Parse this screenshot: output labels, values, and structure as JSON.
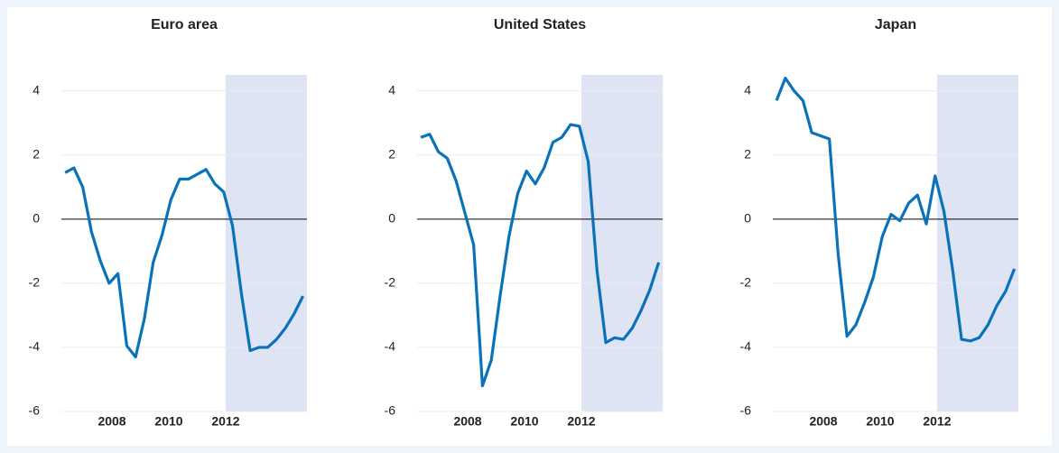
{
  "chart_data": [
    {
      "type": "line",
      "title": "Euro area",
      "x": [
        2006.35,
        2006.66,
        2006.97,
        2007.28,
        2007.59,
        2007.9,
        2008.21,
        2008.52,
        2008.83,
        2009.14,
        2009.45,
        2009.76,
        2010.07,
        2010.38,
        2010.69,
        2011.0,
        2011.31,
        2011.62,
        2011.93,
        2012.24,
        2012.55,
        2012.86,
        2013.17,
        2013.48,
        2013.79,
        2014.1,
        2014.41,
        2014.72
      ],
      "series": [
        {
          "color": "#0a72b8",
          "values": [
            1.45,
            1.6,
            1.0,
            -0.4,
            -1.3,
            -2.0,
            -1.7,
            -3.95,
            -4.3,
            -3.1,
            -1.35,
            -0.5,
            0.6,
            1.25,
            1.25,
            1.4,
            1.55,
            1.1,
            0.85,
            -0.2,
            -2.3,
            -4.1,
            -4.0,
            -4.0,
            -3.75,
            -3.4,
            -2.95,
            -2.4
          ]
        }
      ],
      "xlim": [
        2006.22,
        2014.86
      ],
      "xticks": [
        2008,
        2010,
        2012
      ],
      "ylim": [
        -6,
        4.5
      ],
      "yticks": [
        4,
        2,
        0,
        -2,
        -4,
        -6
      ],
      "grid": true,
      "shaded_range": [
        2012,
        2014.86
      ],
      "shade_color": "#dfe4f5"
    },
    {
      "type": "line",
      "title": "United States",
      "x": [
        2006.35,
        2006.66,
        2006.97,
        2007.28,
        2007.59,
        2007.9,
        2008.21,
        2008.52,
        2008.83,
        2009.14,
        2009.45,
        2009.76,
        2010.07,
        2010.38,
        2010.69,
        2011.0,
        2011.31,
        2011.62,
        2011.93,
        2012.24,
        2012.55,
        2012.86,
        2013.17,
        2013.48,
        2013.79,
        2014.1,
        2014.41,
        2014.72
      ],
      "series": [
        {
          "color": "#0a72b8",
          "values": [
            2.55,
            2.65,
            2.1,
            1.9,
            1.2,
            0.2,
            -0.8,
            -5.2,
            -4.4,
            -2.4,
            -0.55,
            0.8,
            1.5,
            1.1,
            1.6,
            2.4,
            2.55,
            2.95,
            2.9,
            1.8,
            -1.6,
            -3.85,
            -3.7,
            -3.75,
            -3.4,
            -2.85,
            -2.2,
            -1.35
          ]
        }
      ],
      "xlim": [
        2006.22,
        2014.86
      ],
      "xticks": [
        2008,
        2010,
        2012
      ],
      "ylim": [
        -6,
        4.5
      ],
      "yticks": [
        4,
        2,
        0,
        -2,
        -4,
        -6
      ],
      "grid": true,
      "shaded_range": [
        2012,
        2014.86
      ],
      "shade_color": "#dfe4f5"
    },
    {
      "type": "line",
      "title": "Japan",
      "x": [
        2006.35,
        2006.66,
        2006.97,
        2007.28,
        2007.59,
        2007.9,
        2008.21,
        2008.52,
        2008.83,
        2009.14,
        2009.45,
        2009.76,
        2010.07,
        2010.38,
        2010.69,
        2011.0,
        2011.31,
        2011.62,
        2011.93,
        2012.24,
        2012.55,
        2012.86,
        2013.17,
        2013.48,
        2013.79,
        2014.1,
        2014.41,
        2014.72
      ],
      "series": [
        {
          "color": "#0a72b8",
          "values": [
            3.7,
            4.4,
            4.0,
            3.7,
            2.7,
            2.6,
            2.5,
            -1.1,
            -3.65,
            -3.3,
            -2.6,
            -1.8,
            -0.55,
            0.15,
            -0.05,
            0.5,
            0.75,
            -0.15,
            1.35,
            0.25,
            -1.6,
            -3.75,
            -3.8,
            -3.7,
            -3.3,
            -2.7,
            -2.25,
            -1.55
          ]
        }
      ],
      "xlim": [
        2006.22,
        2014.86
      ],
      "xticks": [
        2008,
        2010,
        2012
      ],
      "ylim": [
        -6,
        4.5
      ],
      "yticks": [
        4,
        2,
        0,
        -2,
        -4,
        -6
      ],
      "grid": true,
      "shaded_range": [
        2012,
        2014.86
      ],
      "shade_color": "#dfe4f5"
    }
  ]
}
